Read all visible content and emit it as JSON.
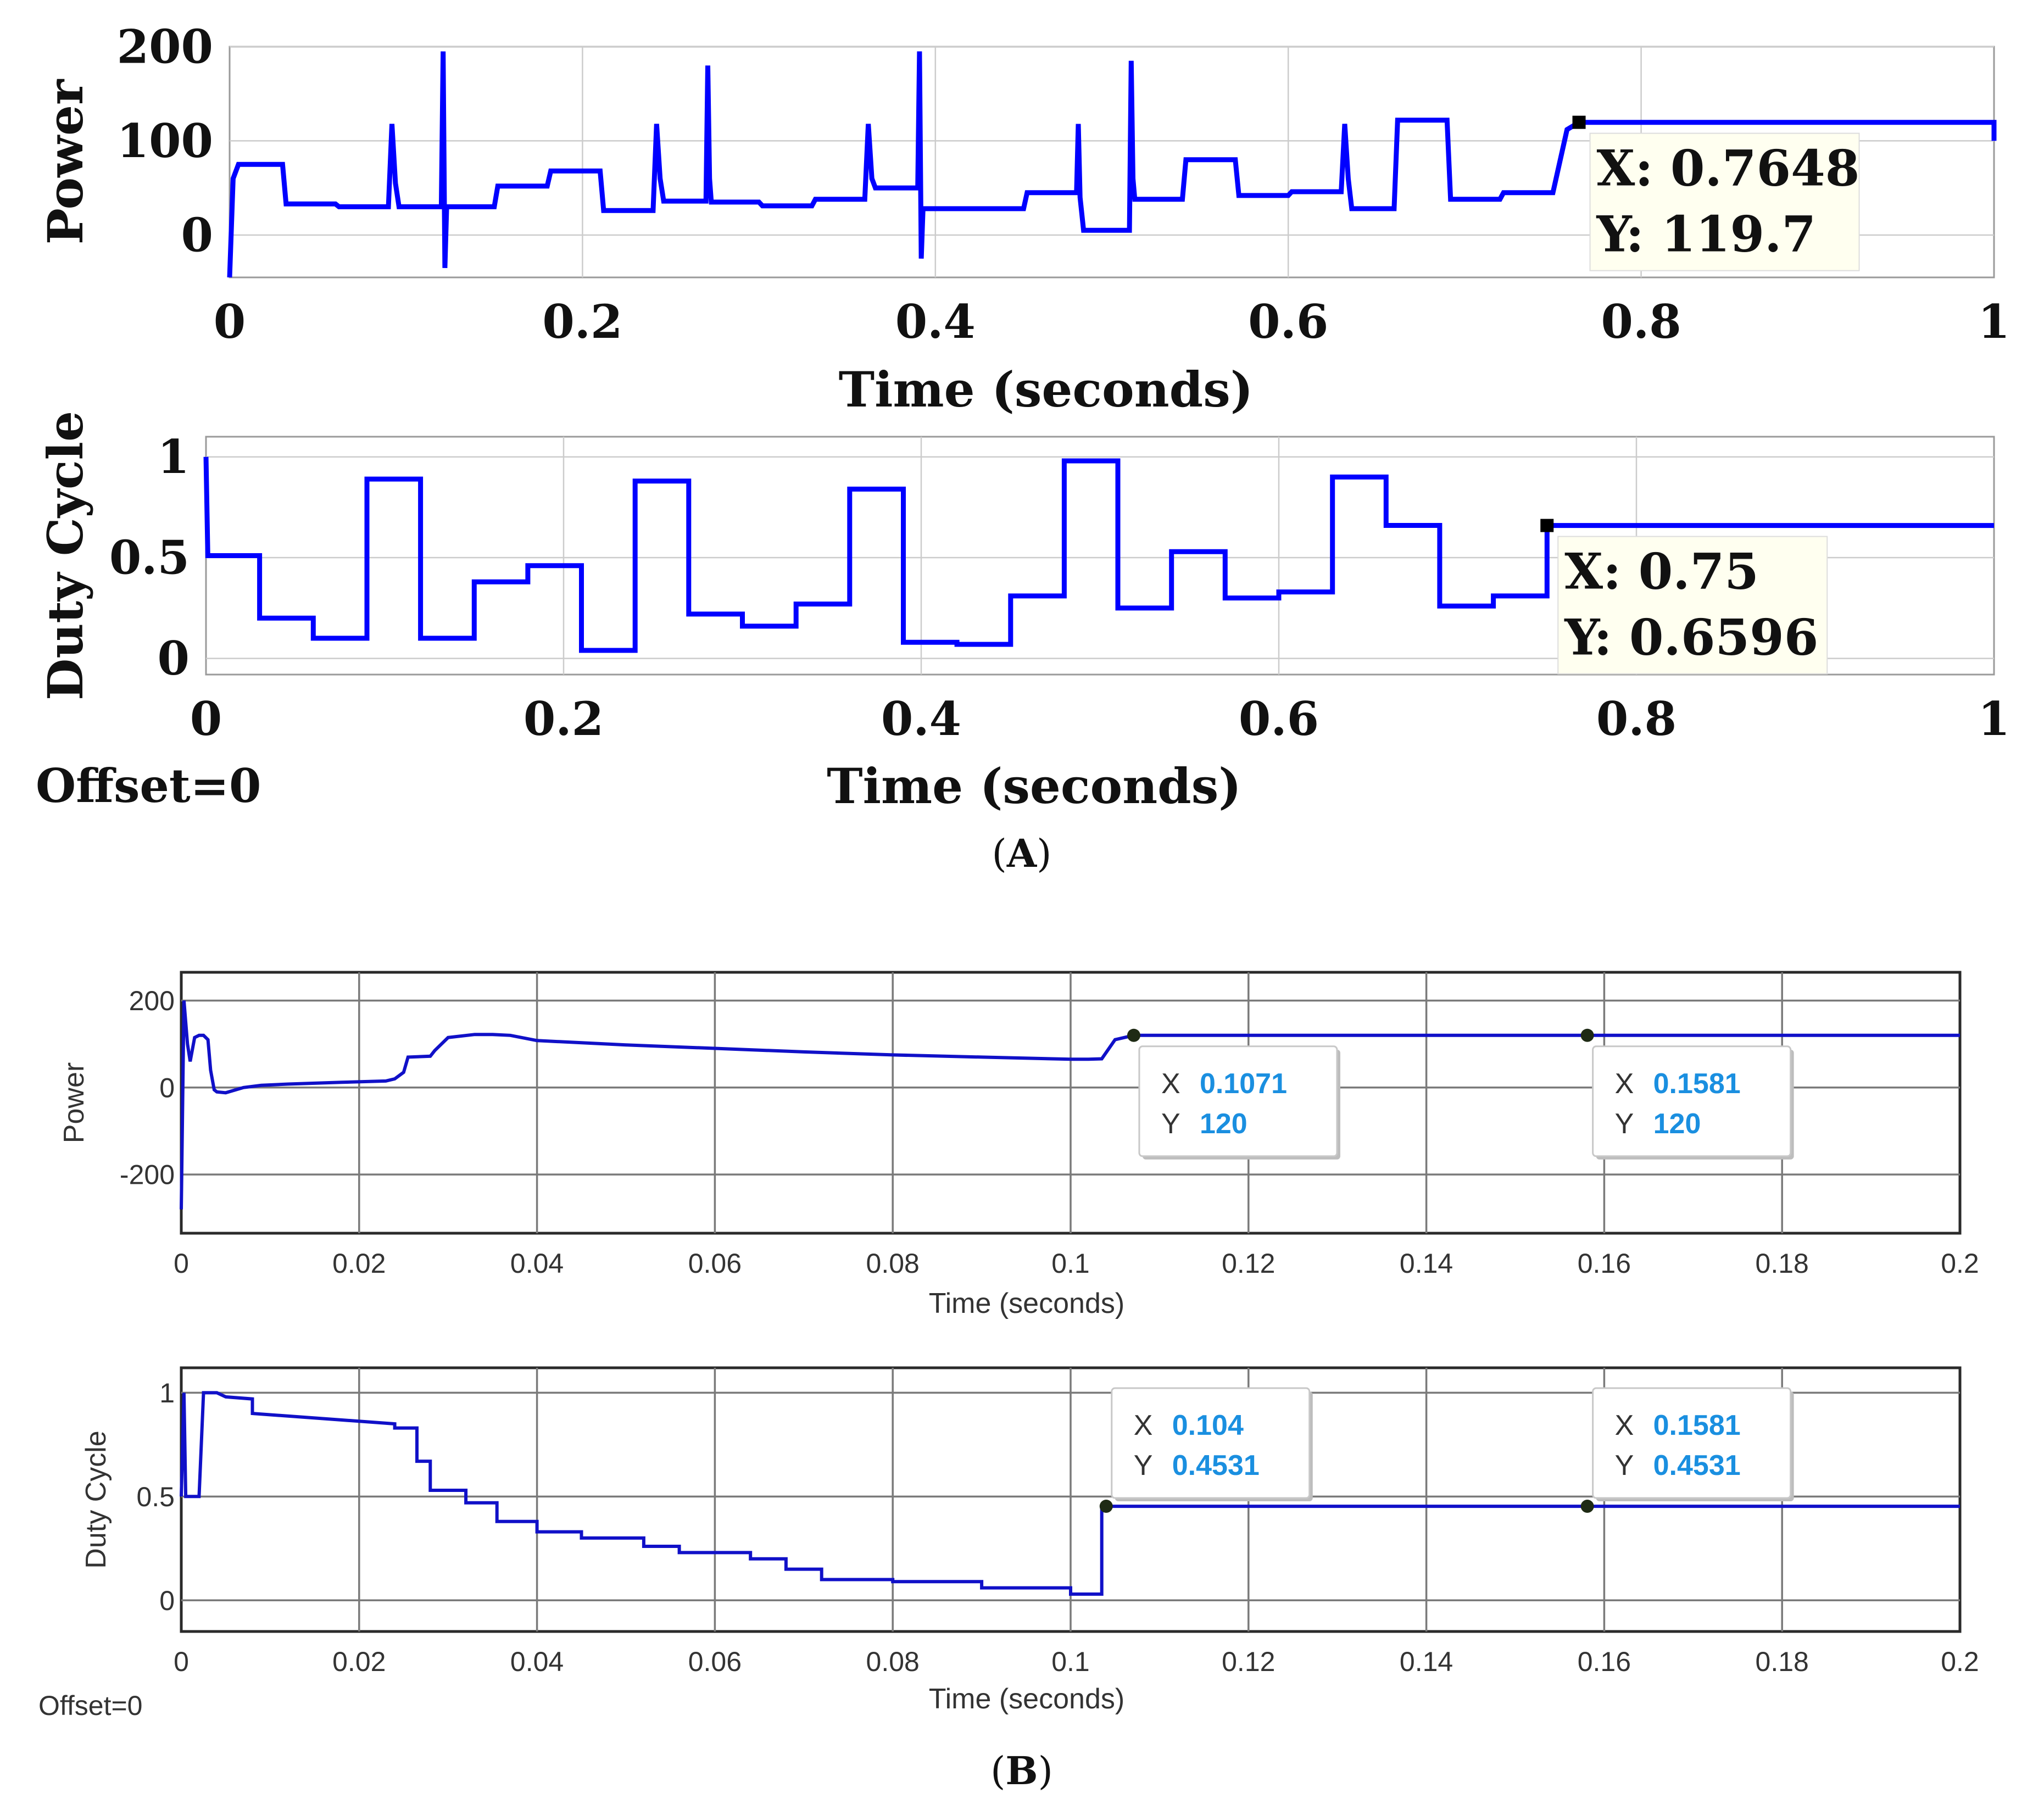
{
  "panels": [
    {
      "label_open": "(",
      "label_letter": "A",
      "label_close": ")"
    },
    {
      "label_open": "(",
      "label_letter": "B",
      "label_close": ")"
    }
  ],
  "colors": {
    "trace": "#0000ff",
    "trace_b": "#1010c8",
    "grid": "#cccccc",
    "grid_b": "#7a7a7a",
    "tip_bg": "#fffff0",
    "tip_value": "#1a8fe0"
  },
  "chart_data": [
    {
      "type": "line",
      "title": "",
      "xlabel": "Time (seconds)",
      "ylabel": "Power",
      "xlim": [
        0,
        1
      ],
      "ylim": [
        -45,
        200
      ],
      "xticks": [
        0,
        0.2,
        0.4,
        0.6,
        0.8,
        1
      ],
      "xtick_labels": [
        "0",
        "0.2",
        "0.4",
        "0.6",
        "0.8",
        "1"
      ],
      "yticks": [
        0,
        100,
        200
      ],
      "ytick_labels": [
        "0",
        "100",
        "200"
      ],
      "grid": true,
      "series": [
        {
          "name": "Power",
          "x": [
            0,
            0.002,
            0.005,
            0.01,
            0.03,
            0.032,
            0.06,
            0.062,
            0.09,
            0.092,
            0.094,
            0.096,
            0.12,
            0.121,
            0.122,
            0.123,
            0.15,
            0.152,
            0.18,
            0.182,
            0.21,
            0.212,
            0.24,
            0.242,
            0.244,
            0.246,
            0.27,
            0.271,
            0.272,
            0.273,
            0.3,
            0.302,
            0.33,
            0.332,
            0.36,
            0.362,
            0.364,
            0.366,
            0.39,
            0.391,
            0.392,
            0.393,
            0.45,
            0.452,
            0.48,
            0.481,
            0.482,
            0.484,
            0.51,
            0.511,
            0.512,
            0.513,
            0.54,
            0.542,
            0.57,
            0.572,
            0.6,
            0.602,
            0.63,
            0.632,
            0.634,
            0.636,
            0.66,
            0.662,
            0.69,
            0.692,
            0.72,
            0.722,
            0.75,
            0.758,
            0.7648,
            1.0,
            1.0
          ],
          "y": [
            -45,
            60,
            75,
            75,
            75,
            33,
            33,
            30,
            30,
            118,
            55,
            30,
            30,
            195,
            -35,
            30,
            30,
            52,
            52,
            68,
            68,
            26,
            26,
            118,
            60,
            36,
            36,
            180,
            60,
            35,
            35,
            31,
            31,
            38,
            38,
            118,
            60,
            50,
            50,
            195,
            -25,
            28,
            28,
            45,
            45,
            118,
            40,
            5,
            5,
            185,
            60,
            38,
            38,
            80,
            80,
            42,
            42,
            46,
            46,
            118,
            60,
            28,
            28,
            122,
            122,
            38,
            38,
            45,
            45,
            112,
            119.7,
            119.7,
            100
          ]
        }
      ],
      "datatips": [
        {
          "x_label": "X: 0.7648",
          "y_label": "Y: 119.7",
          "x": 0.7648,
          "y": 119.7
        }
      ],
      "annotations": []
    },
    {
      "type": "line",
      "title": "",
      "xlabel": "Time (seconds)",
      "ylabel": "Duty Cycle",
      "xlim": [
        0,
        1
      ],
      "ylim": [
        -0.08,
        1.1
      ],
      "xticks": [
        0,
        0.2,
        0.4,
        0.6,
        0.8,
        1
      ],
      "xtick_labels": [
        "0",
        "0.2",
        "0.4",
        "0.6",
        "0.8",
        "1"
      ],
      "yticks": [
        0,
        0.5,
        1
      ],
      "ytick_labels": [
        "0",
        "0.5",
        "1"
      ],
      "grid": true,
      "series": [
        {
          "name": "Duty Cycle",
          "x": [
            0,
            0.001,
            0.03,
            0.03,
            0.06,
            0.06,
            0.09,
            0.09,
            0.12,
            0.12,
            0.15,
            0.15,
            0.18,
            0.18,
            0.21,
            0.21,
            0.24,
            0.24,
            0.27,
            0.27,
            0.3,
            0.3,
            0.33,
            0.33,
            0.36,
            0.36,
            0.39,
            0.39,
            0.42,
            0.42,
            0.45,
            0.45,
            0.48,
            0.48,
            0.51,
            0.51,
            0.54,
            0.54,
            0.57,
            0.57,
            0.6,
            0.6,
            0.63,
            0.63,
            0.66,
            0.66,
            0.69,
            0.69,
            0.72,
            0.72,
            0.75,
            0.75,
            1.0
          ],
          "y": [
            1.0,
            0.51,
            0.51,
            0.2,
            0.2,
            0.1,
            0.1,
            0.89,
            0.89,
            0.1,
            0.1,
            0.38,
            0.38,
            0.46,
            0.46,
            0.04,
            0.04,
            0.88,
            0.88,
            0.22,
            0.22,
            0.16,
            0.16,
            0.27,
            0.27,
            0.84,
            0.84,
            0.08,
            0.08,
            0.07,
            0.07,
            0.31,
            0.31,
            0.98,
            0.98,
            0.25,
            0.25,
            0.53,
            0.53,
            0.3,
            0.3,
            0.33,
            0.33,
            0.9,
            0.9,
            0.66,
            0.66,
            0.26,
            0.26,
            0.31,
            0.31,
            0.6596,
            0.6596
          ]
        }
      ],
      "datatips": [
        {
          "x_label": "X: 0.75",
          "y_label": "Y: 0.6596",
          "x": 0.75,
          "y": 0.6596
        }
      ],
      "annotations": [
        "Offset=0"
      ]
    },
    {
      "type": "line",
      "title": "",
      "xlabel": "Time (seconds)",
      "ylabel": "Power",
      "xlim": [
        0,
        0.2
      ],
      "ylim": [
        -335,
        265
      ],
      "xticks": [
        0,
        0.02,
        0.04,
        0.06,
        0.08,
        0.1,
        0.12,
        0.14,
        0.16,
        0.18,
        0.2
      ],
      "xtick_labels": [
        "0",
        "0.02",
        "0.04",
        "0.06",
        "0.08",
        "0.1",
        "0.12",
        "0.14",
        "0.16",
        "0.18",
        "0.2"
      ],
      "yticks": [
        -200,
        0,
        200
      ],
      "ytick_labels": [
        "-200",
        "0",
        "200"
      ],
      "grid": true,
      "series": [
        {
          "name": "Power",
          "x": [
            0,
            0.0003,
            0.0007,
            0.001,
            0.0015,
            0.002,
            0.0025,
            0.003,
            0.0033,
            0.0037,
            0.004,
            0.005,
            0.007,
            0.009,
            0.012,
            0.018,
            0.023,
            0.024,
            0.025,
            0.0255,
            0.028,
            0.0285,
            0.029,
            0.03,
            0.033,
            0.035,
            0.037,
            0.04,
            0.05,
            0.06,
            0.07,
            0.08,
            0.09,
            0.1,
            0.102,
            0.1035,
            0.105,
            0.1071,
            0.12,
            0.1581,
            0.2
          ],
          "y": [
            -280,
            200,
            100,
            60,
            115,
            120,
            120,
            110,
            40,
            -5,
            -10,
            -12,
            0,
            5,
            8,
            12,
            15,
            20,
            35,
            70,
            72,
            85,
            95,
            115,
            122,
            122,
            120,
            108,
            98,
            90,
            82,
            75,
            70,
            65,
            65,
            66,
            110,
            120,
            120,
            120,
            120
          ]
        }
      ],
      "datatips": [
        {
          "x_prefix": "X",
          "x_value": "0.1071",
          "y_prefix": "Y",
          "y_value": "120",
          "x": 0.1071,
          "y": 120
        },
        {
          "x_prefix": "X",
          "x_value": "0.1581",
          "y_prefix": "Y",
          "y_value": "120",
          "x": 0.1581,
          "y": 120
        }
      ],
      "annotations": []
    },
    {
      "type": "line",
      "title": "",
      "xlabel": "Time (seconds)",
      "ylabel": "Duty Cycle",
      "xlim": [
        0,
        0.2
      ],
      "ylim": [
        -0.15,
        1.12
      ],
      "xticks": [
        0,
        0.02,
        0.04,
        0.06,
        0.08,
        0.1,
        0.12,
        0.14,
        0.16,
        0.18,
        0.2
      ],
      "xtick_labels": [
        "0",
        "0.02",
        "0.04",
        "0.06",
        "0.08",
        "0.1",
        "0.12",
        "0.14",
        "0.16",
        "0.18",
        "0.2"
      ],
      "yticks": [
        0,
        0.5,
        1
      ],
      "ytick_labels": [
        "0",
        "0.5",
        "1"
      ],
      "grid": true,
      "series": [
        {
          "name": "Duty Cycle",
          "x": [
            0,
            0.0003,
            0.0005,
            0.001,
            0.002,
            0.0025,
            0.003,
            0.004,
            0.005,
            0.008,
            0.008,
            0.024,
            0.024,
            0.0265,
            0.0265,
            0.028,
            0.028,
            0.032,
            0.032,
            0.0355,
            0.0355,
            0.04,
            0.04,
            0.045,
            0.045,
            0.052,
            0.052,
            0.056,
            0.056,
            0.064,
            0.064,
            0.068,
            0.068,
            0.072,
            0.072,
            0.08,
            0.08,
            0.09,
            0.09,
            0.1,
            0.1,
            0.1035,
            0.1035,
            0.104,
            0.1581,
            0.2
          ],
          "y": [
            0.5,
            1.0,
            0.5,
            0.5,
            0.5,
            1.0,
            1.0,
            1.0,
            0.98,
            0.97,
            0.9,
            0.85,
            0.83,
            0.83,
            0.67,
            0.67,
            0.53,
            0.53,
            0.47,
            0.47,
            0.38,
            0.38,
            0.33,
            0.33,
            0.3,
            0.3,
            0.26,
            0.26,
            0.23,
            0.23,
            0.2,
            0.2,
            0.15,
            0.15,
            0.1,
            0.1,
            0.09,
            0.09,
            0.06,
            0.06,
            0.03,
            0.03,
            0.45,
            0.4531,
            0.4531,
            0.4531
          ]
        }
      ],
      "datatips": [
        {
          "x_prefix": "X",
          "x_value": "0.104",
          "y_prefix": "Y",
          "y_value": "0.4531",
          "x": 0.104,
          "y": 0.4531
        },
        {
          "x_prefix": "X",
          "x_value": "0.1581",
          "y_prefix": "Y",
          "y_value": "0.4531",
          "x": 0.1581,
          "y": 0.4531
        }
      ],
      "annotations": [
        "Offset=0"
      ]
    }
  ]
}
